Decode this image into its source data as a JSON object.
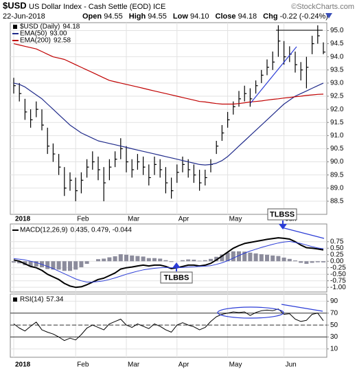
{
  "header": {
    "symbol": "$USD",
    "title": "US Dollar Index - Cash Settle (EOD) ICE",
    "source": "©StockCharts.com",
    "date": "22-Jun-2018",
    "quote": [
      {
        "label": "Open",
        "value": "94.55"
      },
      {
        "label": "High",
        "value": "94.55"
      },
      {
        "label": "Low",
        "value": "94.10"
      },
      {
        "label": "Close",
        "value": "94.18"
      },
      {
        "label": "Chg",
        "value": "-0.22 (-0.24%)"
      }
    ]
  },
  "chart_data": [
    {
      "type": "ohlc",
      "categories": [
        "2018",
        null,
        null,
        null,
        null,
        null,
        null,
        null,
        null,
        null,
        null,
        "Feb",
        null,
        null,
        null,
        null,
        null,
        null,
        null,
        null,
        "Mar",
        null,
        null,
        null,
        null,
        null,
        null,
        null,
        null,
        "Apr",
        null,
        null,
        null,
        null,
        null,
        null,
        null,
        null,
        "May",
        null,
        null,
        null,
        null,
        null,
        null,
        null,
        null,
        null,
        "Jun",
        null,
        null,
        null,
        null,
        null,
        null,
        null
      ],
      "ylim": [
        88.0,
        95.3
      ],
      "yticks": [
        88.5,
        {
          "value": 89,
          "label": "89.0"
        },
        89.5,
        {
          "value": 90,
          "label": "90.0"
        },
        90.5,
        {
          "value": 91,
          "label": "91.0"
        },
        91.5,
        {
          "value": 92,
          "label": "92.0"
        },
        92.5,
        {
          "value": 93,
          "label": "93.0"
        },
        93.5,
        {
          "value": 94,
          "label": "94.0"
        },
        94.5,
        {
          "value": 95,
          "label": "95.0"
        }
      ],
      "grid": true,
      "series": [
        {
          "name": "$USD (Daily)",
          "legend_value": "94.18",
          "color": "#000000",
          "values": [
            92.9,
            92.6,
            91.9,
            91.6,
            92.0,
            91.4,
            90.6,
            90.3,
            89.8,
            89.0,
            89.3,
            88.9,
            89.3,
            89.8,
            90.0,
            89.7,
            89.2,
            89.8,
            90.1,
            90.5,
            90.0,
            89.7,
            90.0,
            89.8,
            89.4,
            89.9,
            89.7,
            89.2,
            88.9,
            89.6,
            89.9,
            89.7,
            89.5,
            89.2,
            89.4,
            89.9,
            90.6,
            91.1,
            91.6,
            92.1,
            92.4,
            92.6,
            92.4,
            92.9,
            93.3,
            93.6,
            93.8,
            94.6,
            94.0,
            94.1,
            93.7,
            93.5,
            93.6,
            94.5,
            94.8,
            94.18
          ],
          "high": [
            93.2,
            93.0,
            92.4,
            92.0,
            92.3,
            92.0,
            91.3,
            90.7,
            90.3,
            89.8,
            89.6,
            89.4,
            89.6,
            90.1,
            90.4,
            90.2,
            89.8,
            90.1,
            90.4,
            90.9,
            90.6,
            90.1,
            90.3,
            90.2,
            89.9,
            90.2,
            90.1,
            89.8,
            89.4,
            89.9,
            90.2,
            90.1,
            89.9,
            89.7,
            89.7,
            90.1,
            90.8,
            91.4,
            91.9,
            92.3,
            92.7,
            92.9,
            92.8,
            93.1,
            93.5,
            93.9,
            94.2,
            95.2,
            94.6,
            94.4,
            94.2,
            93.8,
            94.0,
            94.8,
            95.2,
            94.55
          ],
          "low": [
            92.6,
            92.3,
            91.6,
            91.3,
            91.7,
            91.2,
            90.3,
            90.0,
            89.5,
            88.7,
            88.9,
            88.5,
            88.8,
            89.4,
            89.7,
            89.3,
            88.5,
            89.3,
            89.8,
            90.1,
            89.6,
            89.4,
            89.7,
            89.5,
            89.1,
            89.5,
            89.4,
            88.8,
            88.6,
            89.2,
            89.6,
            89.4,
            89.2,
            88.9,
            89.1,
            89.6,
            90.3,
            90.8,
            91.3,
            91.8,
            92.1,
            92.3,
            92.1,
            92.6,
            93.0,
            93.3,
            93.5,
            94.0,
            93.7,
            93.8,
            93.4,
            93.1,
            92.8,
            94.1,
            94.5,
            94.1
          ]
        },
        {
          "name": "EMA(50)",
          "legend_value": "93.00",
          "color": "#1f2a8a",
          "values": [
            93.0,
            92.95,
            92.85,
            92.7,
            92.55,
            92.4,
            92.2,
            92.0,
            91.8,
            91.6,
            91.4,
            91.25,
            91.1,
            91.0,
            90.9,
            90.8,
            90.75,
            90.7,
            90.65,
            90.6,
            90.55,
            90.5,
            90.45,
            90.4,
            90.35,
            90.3,
            90.25,
            90.2,
            90.15,
            90.1,
            90.05,
            90.0,
            89.95,
            89.9,
            89.88,
            89.9,
            89.95,
            90.05,
            90.2,
            90.4,
            90.6,
            90.8,
            91.0,
            91.2,
            91.4,
            91.6,
            91.8,
            92.0,
            92.2,
            92.35,
            92.5,
            92.6,
            92.7,
            92.8,
            92.9,
            93.0
          ]
        },
        {
          "name": "EMA(200)",
          "legend_value": "92.58",
          "color": "#c00000",
          "values": [
            94.5,
            94.45,
            94.4,
            94.35,
            94.3,
            94.2,
            94.1,
            94.0,
            93.95,
            93.9,
            93.8,
            93.7,
            93.6,
            93.5,
            93.4,
            93.3,
            93.2,
            93.1,
            93.05,
            93.0,
            92.95,
            92.9,
            92.85,
            92.8,
            92.75,
            92.7,
            92.65,
            92.6,
            92.55,
            92.5,
            92.45,
            92.4,
            92.35,
            92.3,
            92.28,
            92.25,
            92.22,
            92.2,
            92.2,
            92.2,
            92.22,
            92.25,
            92.28,
            92.3,
            92.32,
            92.35,
            92.38,
            92.4,
            92.43,
            92.45,
            92.48,
            92.5,
            92.53,
            92.55,
            92.57,
            92.58
          ]
        }
      ]
    },
    {
      "type": "macd",
      "ylim": [
        -1.18,
        1.43
      ],
      "yticks": [
        0.75,
        {
          "value": 0.5,
          "label": "0.50"
        },
        0.25,
        {
          "value": 0,
          "label": "0.00"
        },
        -0.25,
        {
          "value": -0.5,
          "label": "-0.50"
        },
        -0.75,
        {
          "value": -1,
          "label": "-1.00"
        }
      ],
      "grid": true,
      "annotations": [
        "TLBSS",
        "TLBBS"
      ],
      "series": [
        {
          "name": "MACD(12,26,9)",
          "legend_value": "0.435, 0.479, -0.044",
          "color": "#000000",
          "values": [
            0.05,
            0.0,
            -0.1,
            -0.2,
            -0.25,
            -0.35,
            -0.5,
            -0.6,
            -0.7,
            -0.85,
            -0.95,
            -1.0,
            -0.98,
            -0.9,
            -0.8,
            -0.7,
            -0.65,
            -0.55,
            -0.45,
            -0.3,
            -0.25,
            -0.22,
            -0.18,
            -0.15,
            -0.18,
            -0.15,
            -0.15,
            -0.2,
            -0.28,
            -0.25,
            -0.2,
            -0.15,
            -0.15,
            -0.18,
            -0.15,
            -0.08,
            0.05,
            0.2,
            0.35,
            0.5,
            0.6,
            0.68,
            0.72,
            0.76,
            0.8,
            0.84,
            0.87,
            0.9,
            0.88,
            0.85,
            0.75,
            0.62,
            0.52,
            0.5,
            0.47,
            0.435
          ]
        },
        {
          "color": "#2b3cd6",
          "values": [
            0.1,
            0.08,
            0.05,
            0.0,
            -0.05,
            -0.12,
            -0.2,
            -0.28,
            -0.38,
            -0.48,
            -0.58,
            -0.68,
            -0.75,
            -0.8,
            -0.8,
            -0.78,
            -0.75,
            -0.7,
            -0.64,
            -0.57,
            -0.5,
            -0.44,
            -0.38,
            -0.33,
            -0.3,
            -0.27,
            -0.25,
            -0.24,
            -0.25,
            -0.25,
            -0.24,
            -0.22,
            -0.21,
            -0.2,
            -0.19,
            -0.17,
            -0.12,
            -0.06,
            0.02,
            0.12,
            0.22,
            0.31,
            0.39,
            0.46,
            0.53,
            0.59,
            0.65,
            0.7,
            0.74,
            0.76,
            0.72,
            0.68,
            0.62,
            0.56,
            0.51,
            0.479
          ]
        },
        {
          "color": "#8c8c9c",
          "style": "histogram",
          "values": [
            -0.05,
            -0.08,
            -0.15,
            -0.2,
            -0.2,
            -0.23,
            -0.3,
            -0.32,
            -0.32,
            -0.37,
            -0.37,
            -0.32,
            -0.23,
            -0.1,
            0.0,
            0.08,
            0.1,
            0.15,
            0.19,
            0.27,
            0.25,
            0.22,
            0.2,
            0.18,
            0.12,
            0.12,
            0.1,
            0.04,
            -0.03,
            0.0,
            0.04,
            0.07,
            0.06,
            0.02,
            0.04,
            0.09,
            0.17,
            0.26,
            0.33,
            0.38,
            0.38,
            0.37,
            0.33,
            0.3,
            0.27,
            0.25,
            0.22,
            0.2,
            0.14,
            0.09,
            0.03,
            -0.06,
            -0.1,
            -0.06,
            -0.04,
            -0.044
          ]
        }
      ]
    },
    {
      "type": "rsi",
      "categories": [
        "2018",
        null,
        null,
        null,
        null,
        null,
        null,
        null,
        null,
        null,
        null,
        "Feb",
        null,
        null,
        null,
        null,
        null,
        null,
        null,
        null,
        "Mar",
        null,
        null,
        null,
        null,
        null,
        null,
        null,
        null,
        "Apr",
        null,
        null,
        null,
        null,
        null,
        null,
        null,
        null,
        "May",
        null,
        null,
        null,
        null,
        null,
        null,
        null,
        null,
        null,
        "Jun",
        null,
        null,
        null,
        null,
        null,
        null,
        null
      ],
      "ylim": [
        -4,
        102
      ],
      "yticks": [
        90,
        70,
        50,
        30,
        10
      ],
      "levels": [
        70,
        50,
        30
      ],
      "grid": true,
      "series": [
        {
          "name": "RSI(14)",
          "legend_value": "57.34",
          "color": "#000000",
          "values": [
            52,
            45,
            40,
            48,
            55,
            42,
            38,
            35,
            30,
            24,
            28,
            25,
            34,
            45,
            50,
            46,
            42,
            52,
            56,
            60,
            50,
            46,
            52,
            48,
            44,
            52,
            48,
            42,
            38,
            50,
            54,
            50,
            47,
            42,
            46,
            56,
            64,
            68,
            70,
            72,
            71,
            72,
            66,
            71,
            74,
            75,
            74,
            77,
            68,
            69,
            60,
            56,
            58,
            68,
            70,
            57.34
          ]
        }
      ]
    }
  ]
}
